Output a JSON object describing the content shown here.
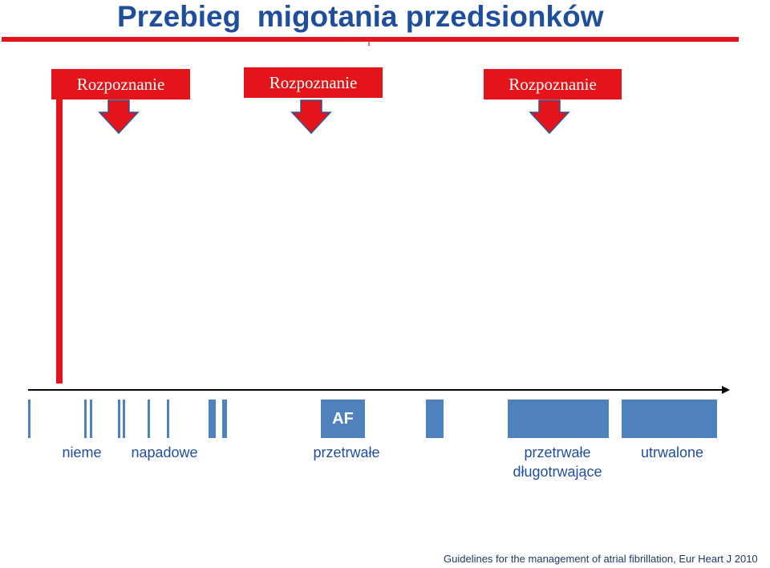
{
  "title": "Przebieg  migotania przedsionków",
  "top_mark": "I",
  "diagnosis_labels": [
    "Rozpoznanie",
    "Rozpoznanie",
    "Rozpoznanie"
  ],
  "af_label": "AF",
  "categories": {
    "silent": "nieme",
    "paroxysmal": "napadowe",
    "persistent": "przetrwałe",
    "long_persistent": "przetrwałe\ndługotrwające",
    "permanent": "utrwalone"
  },
  "footer": "Guidelines for the management of atrial fibrillation, Eur Heart J 2010",
  "colors": {
    "title": "#1f4e9c",
    "red": "#e3151a",
    "bar": "#4f81bd",
    "label": "#1f4e9c"
  }
}
